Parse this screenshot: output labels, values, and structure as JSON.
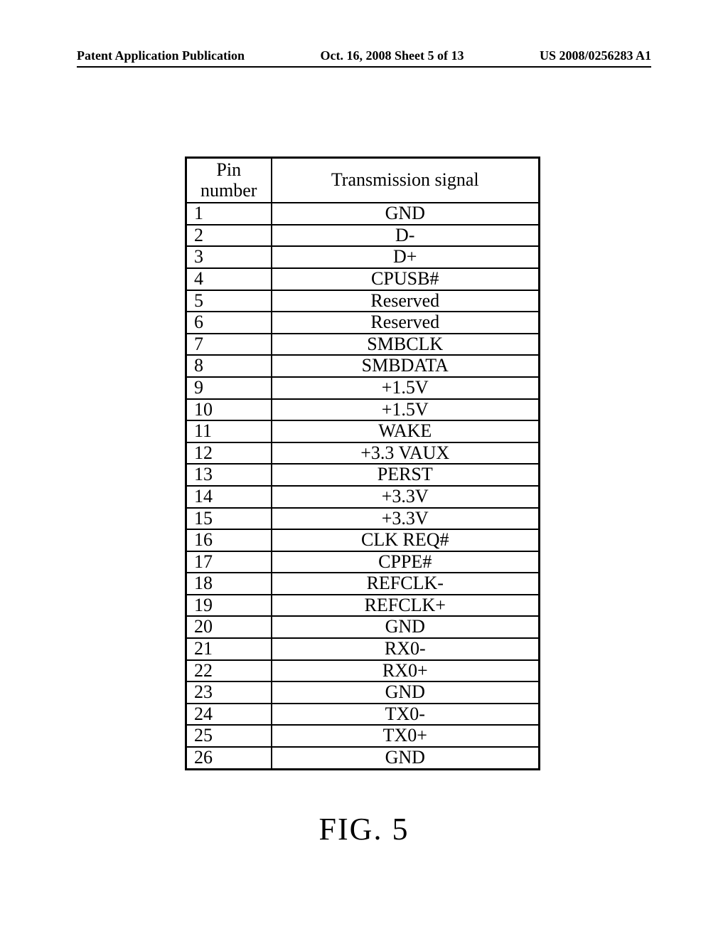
{
  "header": {
    "left": "Patent Application Publication",
    "center": "Oct. 16, 2008  Sheet 5 of 13",
    "right": "US 2008/0256283 A1"
  },
  "table": {
    "columns": [
      "Pin number",
      "Transmission signal"
    ],
    "rows": [
      [
        "1",
        "GND"
      ],
      [
        "2",
        "D-"
      ],
      [
        "3",
        "D+"
      ],
      [
        "4",
        "CPUSB#"
      ],
      [
        "5",
        "Reserved"
      ],
      [
        "6",
        "Reserved"
      ],
      [
        "7",
        "SMBCLK"
      ],
      [
        "8",
        "SMBDATA"
      ],
      [
        "9",
        "+1.5V"
      ],
      [
        "10",
        "+1.5V"
      ],
      [
        "11",
        "WAKE"
      ],
      [
        "12",
        "+3.3 VAUX"
      ],
      [
        "13",
        "PERST"
      ],
      [
        "14",
        "+3.3V"
      ],
      [
        "15",
        "+3.3V"
      ],
      [
        "16",
        "CLK REQ#"
      ],
      [
        "17",
        "CPPE#"
      ],
      [
        "18",
        "REFCLK-"
      ],
      [
        "19",
        "REFCLK+"
      ],
      [
        "20",
        "GND"
      ],
      [
        "21",
        "RX0-"
      ],
      [
        "22",
        "RX0+"
      ],
      [
        "23",
        "GND"
      ],
      [
        "24",
        "TX0-"
      ],
      [
        "25",
        "TX0+"
      ],
      [
        "26",
        "GND"
      ]
    ]
  },
  "figure_label": "FIG. 5"
}
